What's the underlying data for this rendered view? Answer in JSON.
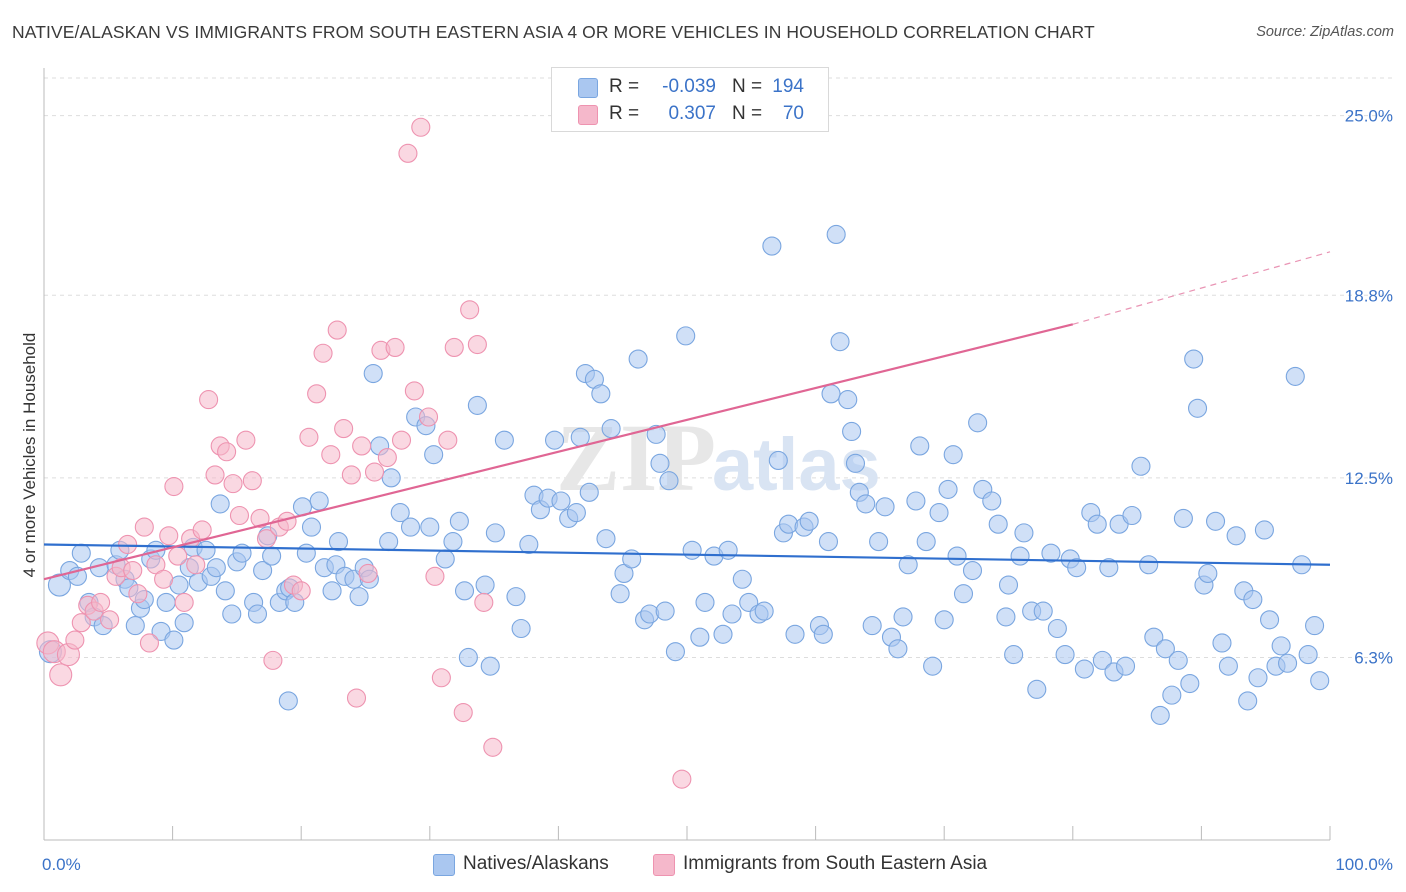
{
  "title": "NATIVE/ALASKAN VS IMMIGRANTS FROM SOUTH EASTERN ASIA 4 OR MORE VEHICLES IN HOUSEHOLD CORRELATION CHART",
  "source": "Source: ZipAtlas.com",
  "watermark": {
    "zip": "ZIP",
    "atlas": "atlas"
  },
  "colors": {
    "blue_fill": "#aac7f0",
    "blue_stroke": "#7aa6e0",
    "blue_line": "#2f6fce",
    "pink_fill": "#f5b8cb",
    "pink_stroke": "#ee93b0",
    "pink_line": "#e06694",
    "tick_text": "#3b73c8",
    "grid": "#dddddd"
  },
  "stats_legend": {
    "rows": [
      {
        "r_label": "R =",
        "r_value": "-0.039",
        "n_label": "N =",
        "n_value": "194",
        "color": "blue"
      },
      {
        "r_label": "R =",
        "r_value": "0.307",
        "n_label": "N =",
        "n_value": "70",
        "color": "pink"
      }
    ]
  },
  "chart_data": {
    "type": "scatter",
    "title": "NATIVE/ALASKAN VS IMMIGRANTS FROM SOUTH EASTERN ASIA 4 OR MORE VEHICLES IN HOUSEHOLD CORRELATION CHART",
    "xlabel": "",
    "ylabel": "4 or more Vehicles in Household",
    "xlim": [
      0,
      100
    ],
    "ylim": [
      0,
      26.3
    ],
    "x_tick_labels": [
      "0.0%",
      "100.0%"
    ],
    "y_ticks": [
      6.3,
      12.5,
      18.8,
      25.0
    ],
    "y_tick_labels": [
      "6.3%",
      "12.5%",
      "18.8%",
      "25.0%"
    ],
    "grid": true,
    "legend_position": "bottom",
    "series": [
      {
        "name": "Natives/Alaskans",
        "color": "blue",
        "trend": {
          "x": [
            0,
            100
          ],
          "y": [
            10.2,
            9.5
          ]
        },
        "points": [
          [
            0.5,
            6.5
          ],
          [
            1.2,
            8.8
          ],
          [
            2.0,
            9.3
          ],
          [
            2.6,
            9.1
          ],
          [
            2.9,
            9.9
          ],
          [
            3.5,
            8.2
          ],
          [
            3.9,
            7.7
          ],
          [
            4.3,
            9.4
          ],
          [
            4.6,
            7.4
          ],
          [
            5.6,
            9.5
          ],
          [
            5.9,
            10.0
          ],
          [
            6.3,
            9.0
          ],
          [
            6.6,
            8.7
          ],
          [
            7.1,
            7.4
          ],
          [
            7.5,
            8.0
          ],
          [
            7.8,
            8.3
          ],
          [
            8.3,
            9.7
          ],
          [
            8.7,
            10.0
          ],
          [
            9.1,
            7.2
          ],
          [
            9.5,
            8.2
          ],
          [
            10.1,
            6.9
          ],
          [
            10.5,
            8.8
          ],
          [
            10.9,
            7.5
          ],
          [
            11.3,
            9.4
          ],
          [
            11.6,
            10.1
          ],
          [
            12.0,
            8.9
          ],
          [
            12.6,
            10.0
          ],
          [
            13.0,
            9.1
          ],
          [
            13.4,
            9.4
          ],
          [
            13.7,
            11.6
          ],
          [
            14.1,
            8.6
          ],
          [
            14.6,
            7.8
          ],
          [
            15.0,
            9.6
          ],
          [
            15.4,
            9.9
          ],
          [
            16.3,
            8.2
          ],
          [
            16.6,
            7.8
          ],
          [
            17.0,
            9.3
          ],
          [
            17.4,
            10.5
          ],
          [
            17.7,
            9.8
          ],
          [
            18.3,
            8.2
          ],
          [
            18.8,
            8.6
          ],
          [
            19.1,
            8.7
          ],
          [
            19.0,
            4.8
          ],
          [
            19.5,
            8.2
          ],
          [
            20.1,
            11.5
          ],
          [
            20.4,
            9.9
          ],
          [
            20.8,
            10.8
          ],
          [
            21.4,
            11.7
          ],
          [
            21.8,
            9.4
          ],
          [
            22.4,
            8.6
          ],
          [
            22.7,
            9.5
          ],
          [
            22.9,
            10.3
          ],
          [
            23.4,
            9.1
          ],
          [
            24.1,
            9.0
          ],
          [
            24.5,
            8.4
          ],
          [
            24.9,
            9.4
          ],
          [
            25.3,
            9.0
          ],
          [
            25.6,
            16.1
          ],
          [
            26.1,
            13.6
          ],
          [
            26.8,
            10.3
          ],
          [
            27.0,
            12.5
          ],
          [
            27.7,
            11.3
          ],
          [
            28.5,
            10.8
          ],
          [
            28.9,
            14.6
          ],
          [
            29.7,
            14.3
          ],
          [
            30.0,
            10.8
          ],
          [
            30.3,
            13.3
          ],
          [
            31.2,
            9.7
          ],
          [
            31.8,
            10.3
          ],
          [
            32.3,
            11.0
          ],
          [
            32.7,
            8.6
          ],
          [
            33.0,
            6.3
          ],
          [
            33.7,
            15.0
          ],
          [
            34.3,
            8.8
          ],
          [
            34.7,
            6.0
          ],
          [
            35.1,
            10.6
          ],
          [
            35.8,
            13.8
          ],
          [
            36.7,
            8.4
          ],
          [
            37.1,
            7.3
          ],
          [
            37.7,
            10.2
          ],
          [
            38.1,
            11.9
          ],
          [
            38.6,
            11.4
          ],
          [
            39.2,
            11.8
          ],
          [
            39.7,
            13.8
          ],
          [
            40.2,
            11.7
          ],
          [
            40.8,
            11.1
          ],
          [
            41.4,
            11.3
          ],
          [
            41.7,
            13.9
          ],
          [
            42.1,
            16.1
          ],
          [
            42.4,
            12.0
          ],
          [
            42.8,
            15.9
          ],
          [
            43.3,
            15.4
          ],
          [
            43.7,
            10.4
          ],
          [
            44.1,
            14.2
          ],
          [
            44.8,
            8.5
          ],
          [
            45.1,
            9.2
          ],
          [
            45.7,
            9.7
          ],
          [
            46.2,
            16.6
          ],
          [
            46.7,
            7.6
          ],
          [
            47.1,
            7.8
          ],
          [
            47.6,
            14.0
          ],
          [
            47.9,
            13.0
          ],
          [
            48.3,
            7.9
          ],
          [
            48.6,
            12.4
          ],
          [
            49.1,
            6.5
          ],
          [
            49.9,
            17.4
          ],
          [
            50.4,
            10.0
          ],
          [
            51.0,
            7.0
          ],
          [
            51.4,
            8.2
          ],
          [
            52.1,
            9.8
          ],
          [
            52.8,
            7.1
          ],
          [
            53.2,
            10.0
          ],
          [
            53.5,
            7.8
          ],
          [
            54.3,
            9.0
          ],
          [
            54.8,
            8.2
          ],
          [
            55.6,
            7.8
          ],
          [
            56.0,
            7.9
          ],
          [
            56.6,
            20.5
          ],
          [
            57.1,
            13.1
          ],
          [
            57.5,
            10.6
          ],
          [
            57.9,
            10.9
          ],
          [
            58.4,
            7.1
          ],
          [
            59.1,
            10.8
          ],
          [
            59.5,
            11.0
          ],
          [
            60.3,
            7.4
          ],
          [
            60.6,
            7.1
          ],
          [
            61.0,
            10.3
          ],
          [
            61.2,
            15.4
          ],
          [
            61.6,
            20.9
          ],
          [
            61.9,
            17.2
          ],
          [
            62.5,
            15.2
          ],
          [
            62.8,
            14.1
          ],
          [
            63.1,
            13.0
          ],
          [
            63.4,
            12.0
          ],
          [
            63.9,
            11.6
          ],
          [
            64.4,
            7.4
          ],
          [
            64.9,
            10.3
          ],
          [
            65.4,
            11.5
          ],
          [
            65.9,
            7.0
          ],
          [
            66.4,
            6.6
          ],
          [
            66.8,
            7.7
          ],
          [
            67.2,
            9.5
          ],
          [
            67.8,
            11.7
          ],
          [
            68.1,
            13.6
          ],
          [
            68.6,
            10.3
          ],
          [
            69.1,
            6.0
          ],
          [
            69.6,
            11.3
          ],
          [
            70.0,
            7.6
          ],
          [
            70.3,
            12.1
          ],
          [
            70.7,
            13.3
          ],
          [
            71.0,
            9.8
          ],
          [
            71.5,
            8.5
          ],
          [
            72.2,
            9.3
          ],
          [
            72.6,
            14.4
          ],
          [
            73.0,
            12.1
          ],
          [
            73.7,
            11.7
          ],
          [
            74.2,
            10.9
          ],
          [
            74.8,
            7.7
          ],
          [
            75.0,
            8.8
          ],
          [
            75.4,
            6.4
          ],
          [
            75.9,
            9.8
          ],
          [
            76.2,
            10.6
          ],
          [
            76.8,
            7.9
          ],
          [
            77.2,
            5.2
          ],
          [
            77.7,
            7.9
          ],
          [
            78.3,
            9.9
          ],
          [
            78.8,
            7.3
          ],
          [
            79.4,
            6.4
          ],
          [
            79.8,
            9.7
          ],
          [
            80.3,
            9.4
          ],
          [
            80.9,
            5.9
          ],
          [
            81.4,
            11.3
          ],
          [
            81.9,
            10.9
          ],
          [
            82.3,
            6.2
          ],
          [
            82.8,
            9.4
          ],
          [
            83.2,
            5.8
          ],
          [
            83.6,
            10.9
          ],
          [
            84.1,
            6.0
          ],
          [
            84.6,
            11.2
          ],
          [
            85.3,
            12.9
          ],
          [
            85.9,
            9.5
          ],
          [
            86.3,
            7.0
          ],
          [
            86.8,
            4.3
          ],
          [
            87.2,
            6.6
          ],
          [
            87.7,
            5.0
          ],
          [
            88.2,
            6.2
          ],
          [
            88.6,
            11.1
          ],
          [
            89.1,
            5.4
          ],
          [
            89.4,
            16.6
          ],
          [
            89.7,
            14.9
          ],
          [
            90.2,
            8.8
          ],
          [
            90.5,
            9.2
          ],
          [
            91.1,
            11.0
          ],
          [
            91.6,
            6.8
          ],
          [
            92.1,
            6.0
          ],
          [
            92.7,
            10.5
          ],
          [
            93.3,
            8.6
          ],
          [
            93.6,
            4.8
          ],
          [
            94.0,
            8.3
          ],
          [
            94.4,
            5.6
          ],
          [
            94.9,
            10.7
          ],
          [
            95.3,
            7.6
          ],
          [
            95.8,
            6.0
          ],
          [
            96.2,
            6.7
          ],
          [
            96.7,
            6.1
          ],
          [
            97.3,
            16.0
          ],
          [
            97.8,
            9.5
          ],
          [
            98.3,
            6.4
          ],
          [
            98.8,
            7.4
          ],
          [
            99.2,
            5.5
          ]
        ]
      },
      {
        "name": "Immigrants from South Eastern Asia",
        "color": "pink",
        "trend": {
          "x": [
            0,
            80
          ],
          "y": [
            9.0,
            17.8
          ]
        },
        "trend_dashed": {
          "x": [
            80,
            100
          ],
          "y": [
            17.8,
            20.3
          ]
        },
        "points": [
          [
            0.3,
            6.8
          ],
          [
            0.8,
            6.5
          ],
          [
            1.3,
            5.7
          ],
          [
            1.9,
            6.4
          ],
          [
            2.4,
            6.9
          ],
          [
            2.9,
            7.5
          ],
          [
            3.4,
            8.1
          ],
          [
            3.9,
            7.9
          ],
          [
            4.4,
            8.2
          ],
          [
            5.1,
            7.6
          ],
          [
            5.6,
            9.1
          ],
          [
            6.0,
            9.4
          ],
          [
            6.5,
            10.2
          ],
          [
            6.9,
            9.3
          ],
          [
            7.3,
            8.5
          ],
          [
            7.8,
            10.8
          ],
          [
            8.2,
            6.8
          ],
          [
            8.7,
            9.5
          ],
          [
            9.3,
            9.0
          ],
          [
            9.7,
            10.5
          ],
          [
            10.1,
            12.2
          ],
          [
            10.4,
            9.8
          ],
          [
            10.9,
            8.2
          ],
          [
            11.4,
            10.4
          ],
          [
            11.8,
            9.5
          ],
          [
            12.3,
            10.7
          ],
          [
            12.8,
            15.2
          ],
          [
            13.3,
            12.6
          ],
          [
            13.7,
            13.6
          ],
          [
            14.2,
            13.4
          ],
          [
            14.7,
            12.3
          ],
          [
            15.2,
            11.2
          ],
          [
            15.7,
            13.8
          ],
          [
            16.2,
            12.4
          ],
          [
            16.8,
            11.1
          ],
          [
            17.3,
            10.4
          ],
          [
            17.8,
            6.2
          ],
          [
            18.3,
            10.8
          ],
          [
            18.9,
            11.0
          ],
          [
            19.4,
            8.8
          ],
          [
            20.0,
            8.6
          ],
          [
            20.6,
            13.9
          ],
          [
            21.2,
            15.4
          ],
          [
            21.7,
            16.8
          ],
          [
            22.3,
            13.3
          ],
          [
            22.8,
            17.6
          ],
          [
            23.3,
            14.2
          ],
          [
            23.9,
            12.6
          ],
          [
            24.3,
            4.9
          ],
          [
            24.7,
            13.6
          ],
          [
            25.2,
            9.2
          ],
          [
            25.7,
            12.7
          ],
          [
            26.2,
            16.9
          ],
          [
            26.7,
            13.2
          ],
          [
            27.3,
            17.0
          ],
          [
            27.8,
            13.8
          ],
          [
            28.3,
            23.7
          ],
          [
            28.8,
            15.5
          ],
          [
            29.3,
            24.6
          ],
          [
            29.9,
            14.6
          ],
          [
            30.4,
            9.1
          ],
          [
            30.9,
            5.6
          ],
          [
            31.4,
            13.8
          ],
          [
            31.9,
            17.0
          ],
          [
            32.6,
            4.4
          ],
          [
            33.1,
            18.3
          ],
          [
            33.7,
            17.1
          ],
          [
            34.2,
            8.2
          ],
          [
            34.9,
            3.2
          ],
          [
            49.6,
            2.1
          ]
        ]
      }
    ]
  },
  "bottom_legend": [
    {
      "label": "Natives/Alaskans",
      "color": "blue"
    },
    {
      "label": "Immigrants from South Eastern Asia",
      "color": "pink"
    }
  ]
}
